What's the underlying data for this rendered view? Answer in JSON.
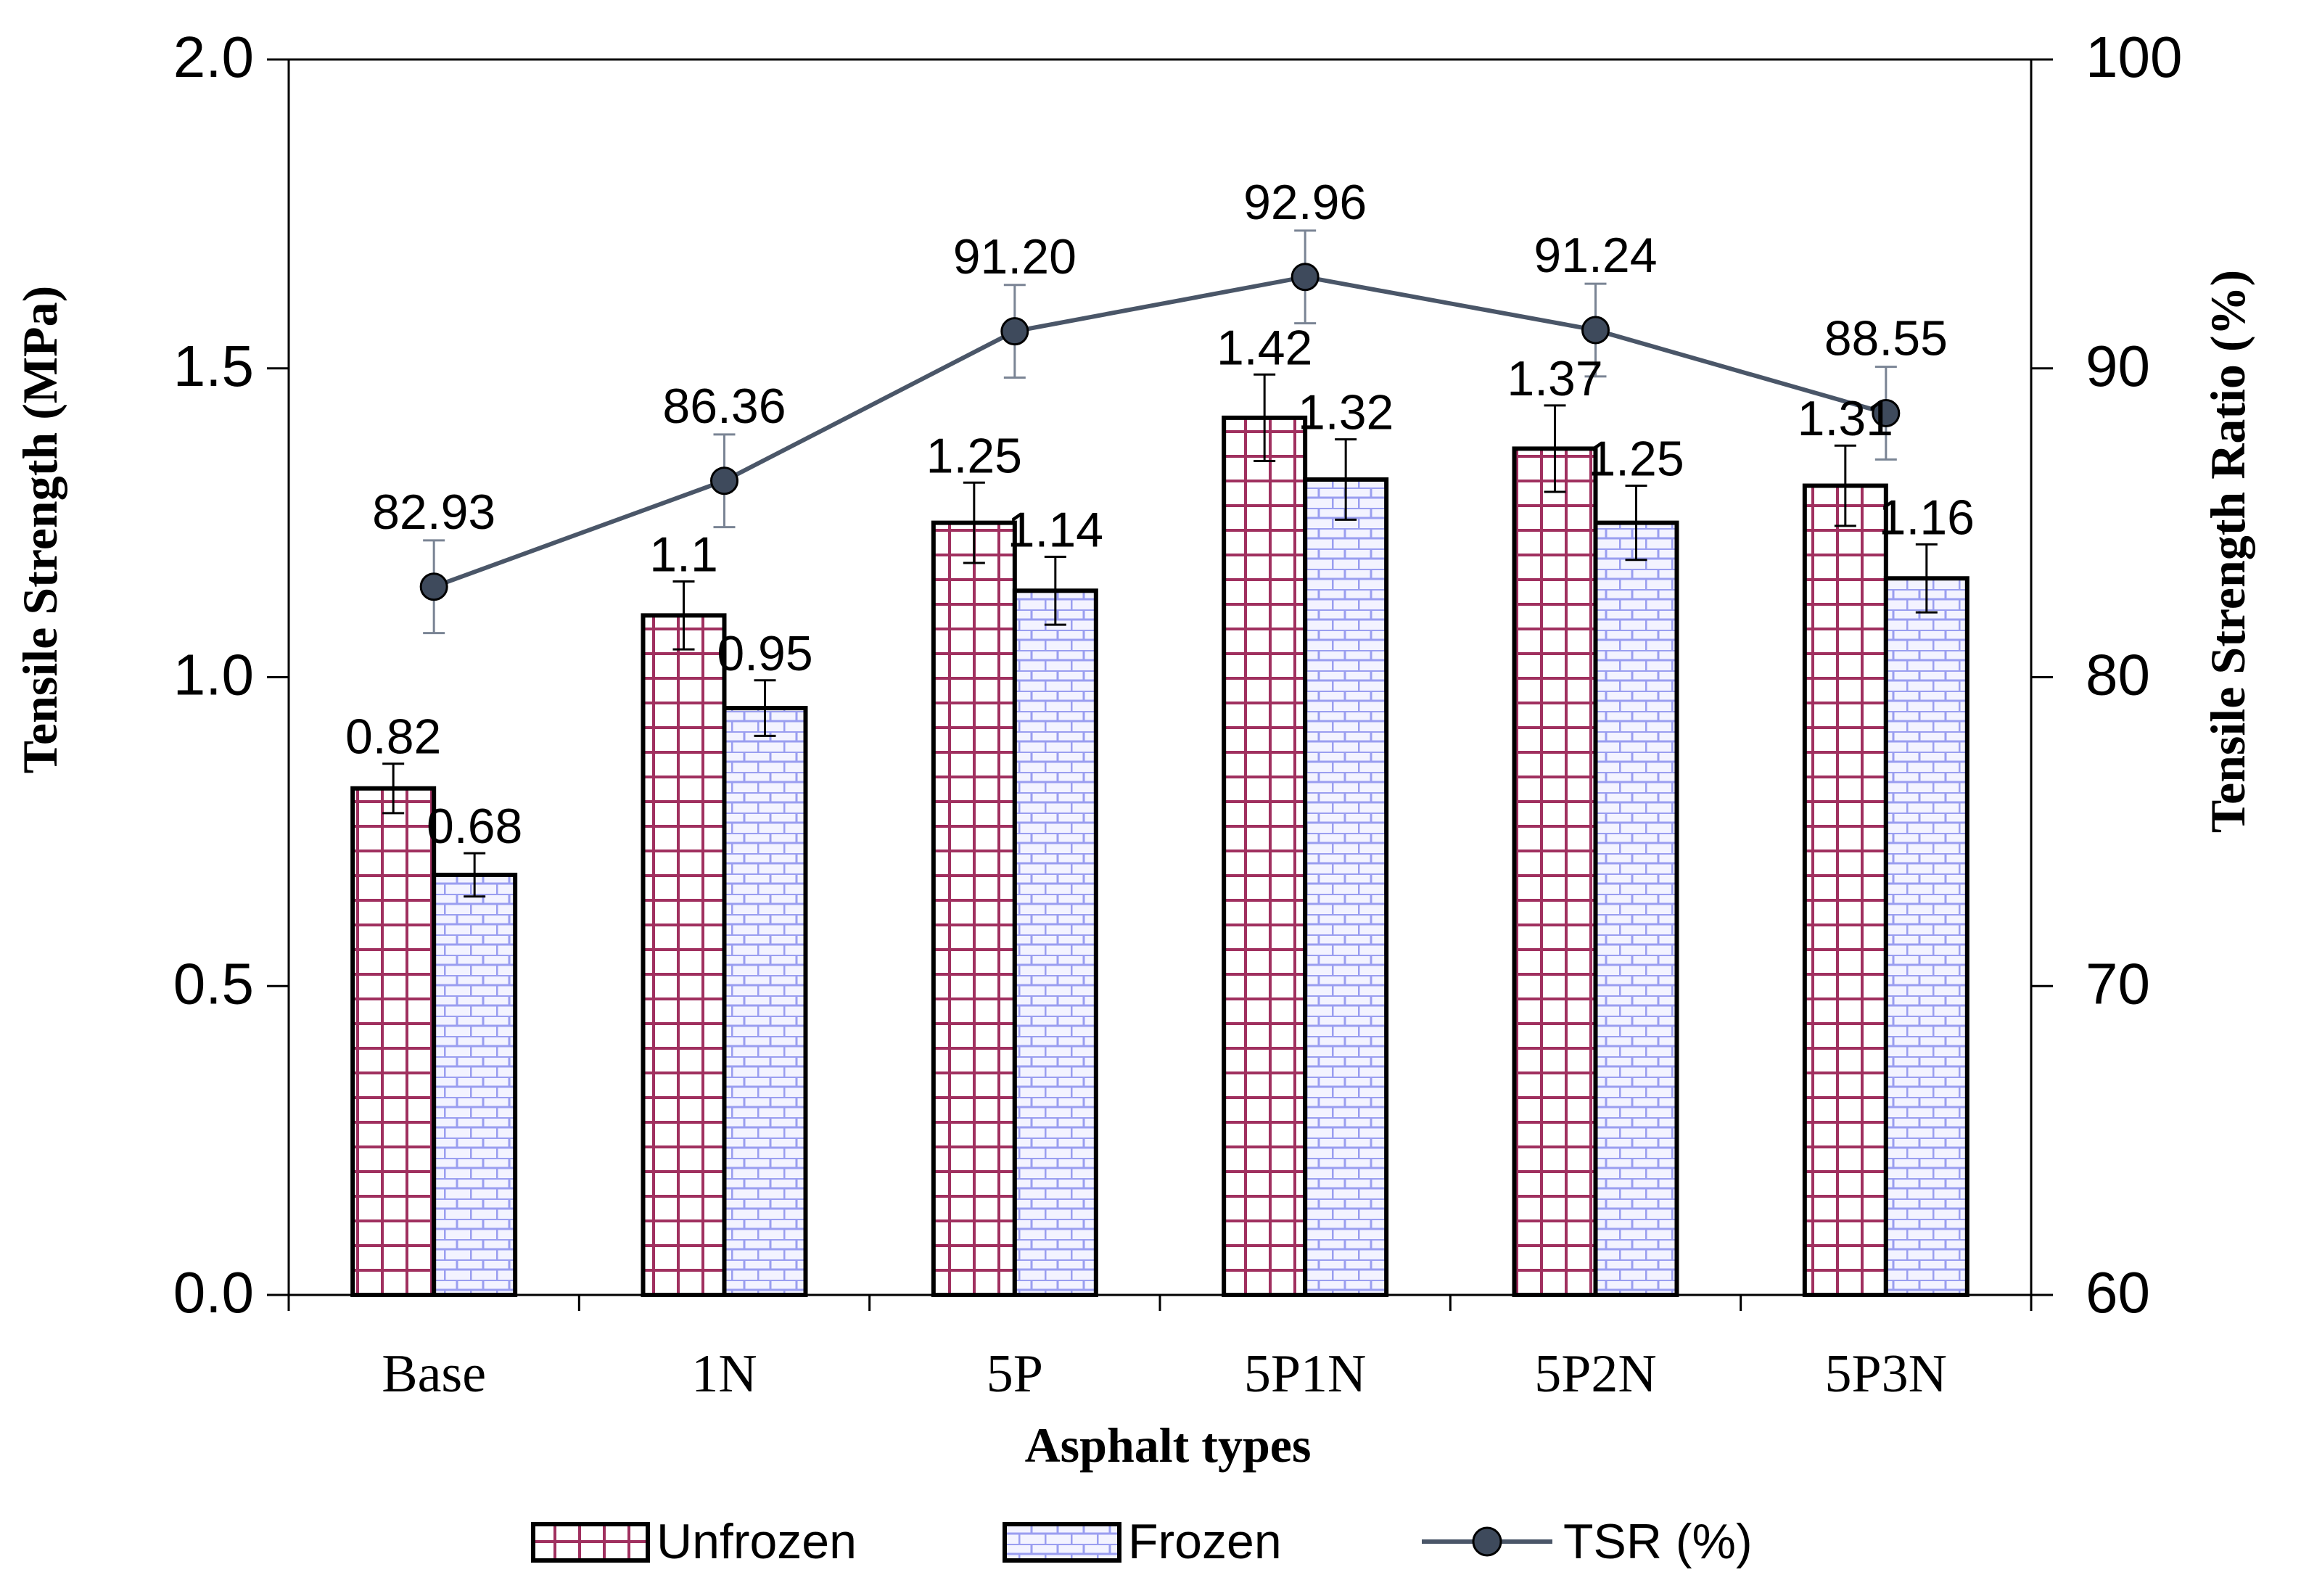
{
  "chart_data": {
    "type": "bar",
    "xlabel": "Asphalt types",
    "ylabel": "Tensile Strength (MPa)",
    "y2label": "Tensile Strength Ratio (%)",
    "ylim": [
      0,
      2.0
    ],
    "y2lim": [
      60,
      100
    ],
    "yticks": [
      "0.0",
      "0.5",
      "1.0",
      "1.5",
      "2.0"
    ],
    "y2ticks": [
      "60",
      "70",
      "80",
      "90",
      "100"
    ],
    "categories": [
      "Base",
      "1N",
      "5P",
      "5P1N",
      "5P2N",
      "5P3N"
    ],
    "series": [
      {
        "name": "Unfrozen",
        "axis": "left",
        "kind": "bar",
        "pattern": "grid",
        "values": [
          0.82,
          1.1,
          1.25,
          1.42,
          1.37,
          1.31
        ],
        "labels": [
          "0.82",
          "1.1",
          "1.25",
          "1.42",
          "1.37",
          "1.31"
        ],
        "error": [
          0.04,
          0.055,
          0.065,
          0.07,
          0.07,
          0.065
        ]
      },
      {
        "name": "Frozen",
        "axis": "left",
        "kind": "bar",
        "pattern": "brick",
        "values": [
          0.68,
          0.95,
          1.14,
          1.32,
          1.25,
          1.16
        ],
        "labels": [
          "0.68",
          "0.95",
          "1.14",
          "1.32",
          "1.25",
          "1.16"
        ],
        "error": [
          0.035,
          0.045,
          0.055,
          0.065,
          0.06,
          0.055
        ]
      },
      {
        "name": "TSR (%)",
        "axis": "right",
        "kind": "line",
        "values": [
          82.93,
          86.36,
          91.2,
          92.96,
          91.24,
          88.55
        ],
        "labels": [
          "82.93",
          "86.36",
          "91.20",
          "92.96",
          "91.24",
          "88.55"
        ],
        "error": [
          1.5,
          1.5,
          1.5,
          1.5,
          1.5,
          1.5
        ]
      }
    ],
    "legend": {
      "position": "bottom",
      "items": [
        "Unfrozen",
        "Frozen",
        "TSR (%)"
      ]
    },
    "grid": false,
    "colors": {
      "unfrozen_line": "#a0305f",
      "frozen_line": "#9a9ef0",
      "frozen_fill": "#f3f3ff",
      "tsr_line": "#4a5668",
      "tsr_marker": "#3e4a5c",
      "error_bar_tsr": "#7a8494",
      "axis": "#000000"
    }
  }
}
